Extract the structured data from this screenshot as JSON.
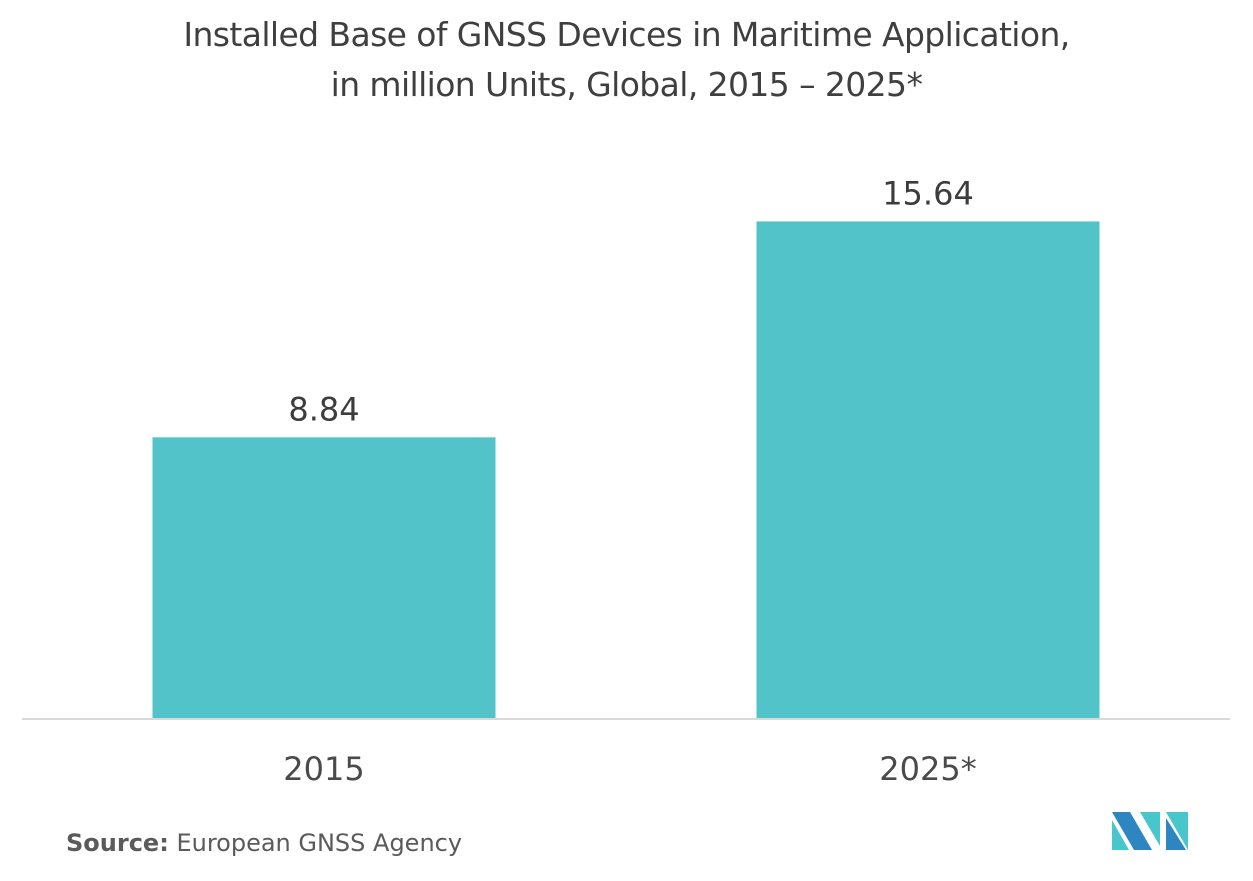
{
  "title_line1": "Installed Base of GNSS Devices in Maritime Application,",
  "title_line2": "in million Units, Global, 2015 – 2025*",
  "source_label": "Source:",
  "source_text": "European GNSS Agency",
  "logo_icon": "mordor-intelligence-logo-icon",
  "colors": {
    "bar": "#52c3c9",
    "axis": "#d9d9d9",
    "text": "#3c3c3c",
    "logo_dark": "#2e86c1",
    "logo_light": "#47c7cc"
  },
  "chart_data": {
    "type": "bar",
    "title": "Installed Base of GNSS Devices in Maritime Application, in million Units, Global, 2015 – 2025*",
    "categories": [
      "2015",
      "2025*"
    ],
    "values": [
      8.84,
      15.64
    ],
    "value_labels": [
      "8.84",
      "15.64"
    ],
    "xlabel": "",
    "ylabel": "",
    "ylim": [
      0,
      18
    ],
    "grid": false,
    "legend": "none"
  }
}
